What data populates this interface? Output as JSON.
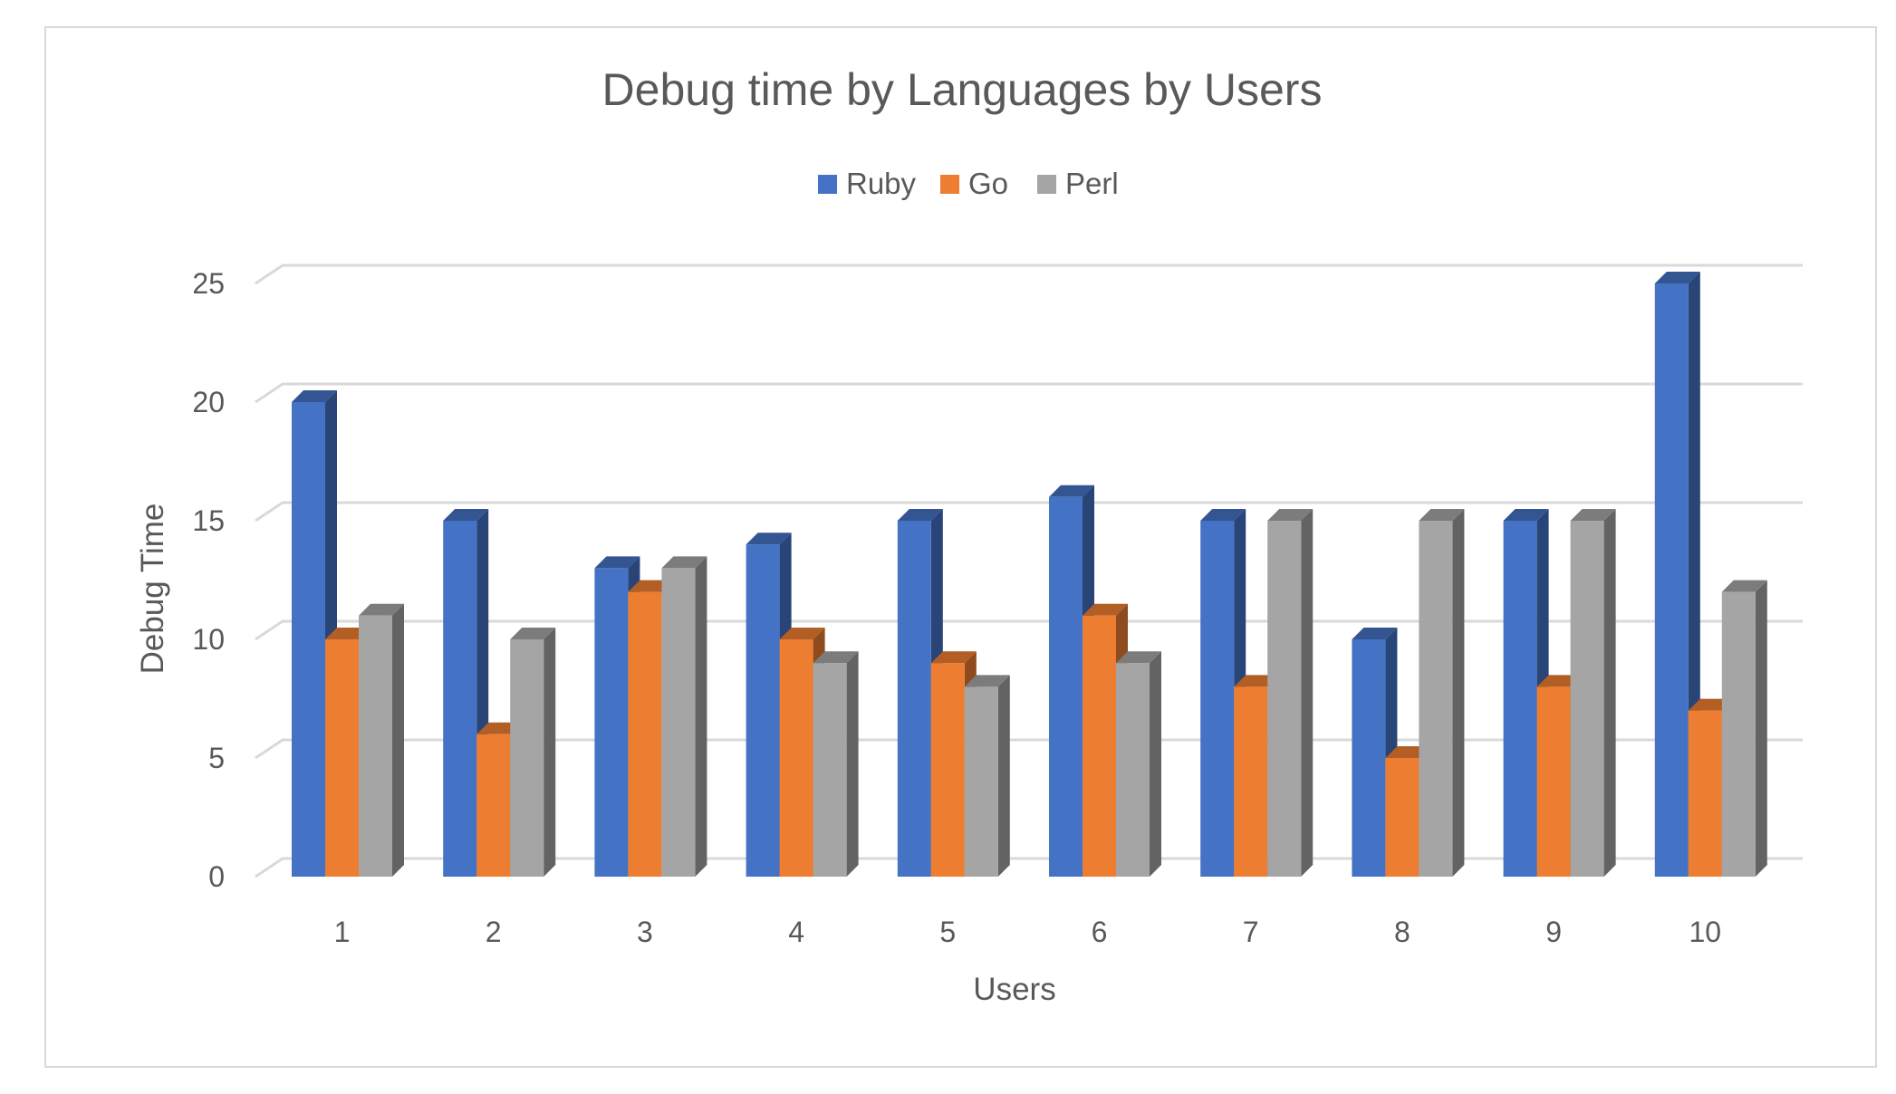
{
  "chart_data": {
    "type": "bar",
    "title": "Debug time by Languages by Users",
    "xlabel": "Users",
    "ylabel": "Debug Time",
    "categories": [
      "1",
      "2",
      "3",
      "4",
      "5",
      "6",
      "7",
      "8",
      "9",
      "10"
    ],
    "y_ticks": [
      "0",
      "5",
      "10",
      "15",
      "20",
      "25"
    ],
    "ylim": [
      0,
      25
    ],
    "grid": true,
    "legend_position": "top",
    "style": "3d-clustered-column",
    "series": [
      {
        "name": "Ruby",
        "color": "#4472c4",
        "values": [
          20,
          15,
          13,
          14,
          15,
          16,
          15,
          10,
          15,
          25
        ]
      },
      {
        "name": "Go",
        "color": "#ed7d31",
        "values": [
          10,
          6,
          12,
          10,
          9,
          11,
          8,
          5,
          8,
          7
        ]
      },
      {
        "name": "Perl",
        "color": "#a5a5a5",
        "values": [
          11,
          10,
          13,
          9,
          8,
          9,
          15,
          15,
          15,
          12
        ]
      }
    ]
  }
}
